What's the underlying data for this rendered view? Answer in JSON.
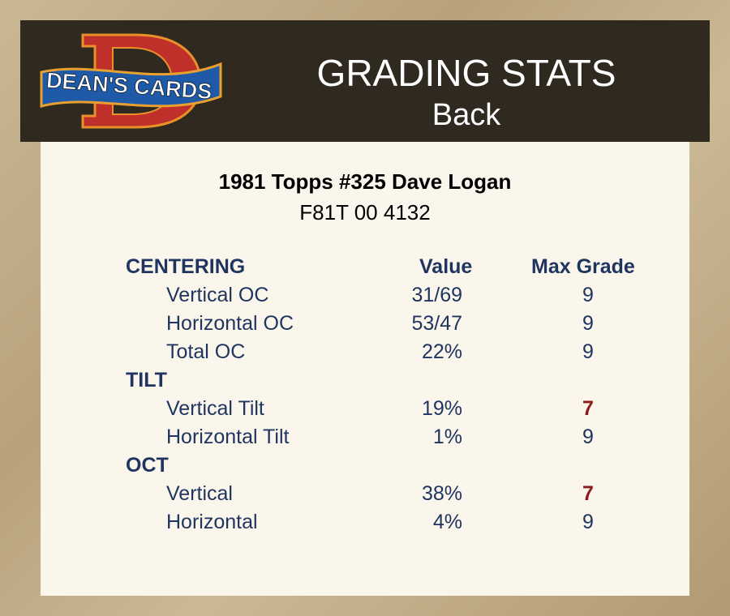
{
  "header": {
    "logo_text": "DEAN'S CARDS",
    "title": "GRADING STATS",
    "subtitle": "Back"
  },
  "card": {
    "name": "1981 Topps #325 Dave Logan",
    "cert": "F81T 00 4132"
  },
  "columns": {
    "value": "Value",
    "max_grade": "Max Grade"
  },
  "colors": {
    "text": "#1f3560",
    "low_grade": "#8b1a1a",
    "header_bg": "#2f2920",
    "panel_bg": "#fbf6ec"
  },
  "sections": [
    {
      "title": "CENTERING",
      "rows": [
        {
          "label": "Vertical OC",
          "value": "31/69",
          "grade": "9",
          "low": false
        },
        {
          "label": "Horizontal OC",
          "value": "53/47",
          "grade": "9",
          "low": false
        },
        {
          "label": "Total OC",
          "value": "22%",
          "grade": "9",
          "low": false
        }
      ]
    },
    {
      "title": "TILT",
      "rows": [
        {
          "label": "Vertical Tilt",
          "value": "19%",
          "grade": "7",
          "low": true
        },
        {
          "label": "Horizontal Tilt",
          "value": "1%",
          "grade": "9",
          "low": false
        }
      ]
    },
    {
      "title": "OCT",
      "rows": [
        {
          "label": "Vertical",
          "value": "38%",
          "grade": "7",
          "low": true
        },
        {
          "label": "Horizontal",
          "value": "4%",
          "grade": "9",
          "low": false
        }
      ]
    }
  ]
}
